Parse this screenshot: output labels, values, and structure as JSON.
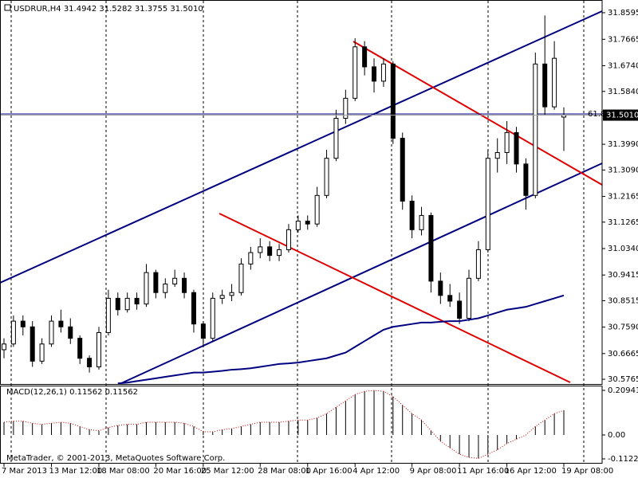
{
  "chart_data": [
    {
      "type": "candlestick",
      "title": "USDRUR,H4  31.4942 31.5282 31.3755 31.5010",
      "categories": [
        "7 Mar 2013",
        null,
        null,
        null,
        null,
        "13 Mar 12:00",
        null,
        null,
        null,
        null,
        "18 Mar 08:00",
        null,
        null,
        null,
        null,
        null,
        "20 Mar 16:00",
        null,
        null,
        null,
        null,
        "25 Mar 12:00",
        null,
        null,
        null,
        null,
        null,
        "28 Mar 08:00",
        null,
        null,
        null,
        null,
        "1 Apr 16:00",
        null,
        null,
        null,
        null,
        "4 Apr 12:00",
        null,
        null,
        null,
        null,
        null,
        "9 Apr 08:00",
        null,
        null,
        null,
        null,
        "11 Apr 16:00",
        null,
        null,
        null,
        null,
        "16 Apr 12:00",
        null,
        null,
        null,
        null,
        null,
        "19 Apr 08:00"
      ],
      "open": [
        30.68,
        30.7,
        30.78,
        30.76,
        30.64,
        30.7,
        30.78,
        30.76,
        30.72,
        30.65,
        30.62,
        30.74,
        30.86,
        30.82,
        30.86,
        30.84,
        30.95,
        30.88,
        30.91,
        30.93,
        30.88,
        30.77,
        30.72,
        30.86,
        30.87,
        30.88,
        30.98,
        31.02,
        31.04,
        31.01,
        31.03,
        31.1,
        31.13,
        31.12,
        31.22,
        31.35,
        31.49,
        31.56,
        31.74,
        31.67,
        31.62,
        31.68,
        31.42,
        31.2,
        31.1,
        31.15,
        30.92,
        30.87,
        30.85,
        30.79,
        30.93,
        31.03,
        31.35,
        31.37,
        31.44,
        31.33,
        31.22,
        31.68,
        31.53,
        31.4942
      ],
      "high": [
        30.72,
        30.8,
        30.8,
        30.78,
        30.72,
        30.8,
        30.82,
        30.79,
        30.73,
        30.66,
        30.76,
        30.89,
        30.88,
        30.88,
        30.88,
        30.98,
        30.96,
        30.93,
        30.96,
        30.95,
        30.89,
        30.78,
        30.88,
        30.89,
        30.91,
        31.0,
        31.04,
        31.07,
        31.06,
        31.05,
        31.12,
        31.15,
        31.15,
        31.25,
        31.38,
        31.52,
        31.59,
        31.77,
        31.76,
        31.7,
        31.7,
        31.69,
        31.44,
        31.22,
        31.18,
        31.16,
        30.95,
        30.91,
        30.88,
        30.96,
        31.06,
        31.38,
        31.42,
        31.48,
        31.46,
        31.35,
        31.72,
        31.85,
        31.76,
        31.5282
      ],
      "low": [
        30.65,
        30.69,
        30.73,
        30.62,
        30.63,
        30.69,
        30.74,
        30.7,
        30.63,
        30.6,
        30.61,
        30.73,
        30.8,
        30.81,
        30.82,
        30.83,
        30.86,
        30.86,
        30.9,
        30.86,
        30.74,
        30.69,
        30.71,
        30.84,
        30.85,
        30.87,
        30.96,
        31.0,
        30.99,
        30.99,
        31.02,
        31.09,
        31.1,
        31.11,
        31.21,
        31.34,
        31.47,
        31.55,
        31.64,
        31.58,
        31.6,
        31.4,
        31.17,
        31.07,
        31.08,
        30.88,
        30.84,
        30.83,
        30.77,
        30.78,
        30.92,
        31.02,
        31.3,
        31.33,
        31.3,
        31.17,
        31.21,
        31.5,
        31.52,
        31.3755
      ],
      "close": [
        30.7,
        30.78,
        30.76,
        30.64,
        30.7,
        30.78,
        30.76,
        30.72,
        30.65,
        30.62,
        30.74,
        30.86,
        30.82,
        30.86,
        30.84,
        30.95,
        30.88,
        30.91,
        30.93,
        30.88,
        30.77,
        30.72,
        30.86,
        30.87,
        30.88,
        30.98,
        31.02,
        31.04,
        31.01,
        31.03,
        31.1,
        31.13,
        31.12,
        31.22,
        31.35,
        31.49,
        31.56,
        31.74,
        31.67,
        31.62,
        31.68,
        31.42,
        31.2,
        31.1,
        31.15,
        30.92,
        30.87,
        30.85,
        30.79,
        30.93,
        31.03,
        31.35,
        31.37,
        31.44,
        31.33,
        31.22,
        31.68,
        31.53,
        31.7,
        31.501
      ],
      "ma": {
        "color": "#000080",
        "values": [
          null,
          null,
          null,
          null,
          null,
          null,
          null,
          null,
          null,
          null,
          null,
          null,
          30.562,
          30.565,
          30.57,
          30.575,
          30.58,
          30.585,
          30.59,
          30.595,
          30.6,
          30.6,
          30.603,
          30.606,
          30.61,
          30.612,
          30.615,
          30.62,
          30.625,
          30.63,
          30.632,
          30.635,
          30.64,
          30.645,
          30.65,
          30.66,
          30.67,
          30.69,
          30.71,
          30.73,
          30.75,
          30.76,
          30.765,
          30.77,
          30.775,
          30.775,
          30.778,
          30.78,
          30.78,
          30.785,
          30.79,
          30.8,
          30.81,
          30.82,
          30.825,
          30.83,
          30.84,
          30.85,
          30.86,
          30.87
        ]
      },
      "price_label": "31.5010",
      "fib_label": "61.8",
      "ylim": [
        30.56,
        31.904
      ],
      "yticks": [
        31.8595,
        31.7665,
        {
          "value": 31.674,
          "label": "31.6740"
        },
        {
          "value": 31.584,
          "label": "31.5840"
        },
        {
          "value": 31.399,
          "label": "31.3990"
        },
        {
          "value": 31.309,
          "label": "31.3090"
        },
        31.2165,
        31.1265,
        {
          "value": 31.034,
          "label": "31.0340"
        },
        30.9415,
        30.8515,
        {
          "value": 30.759,
          "label": "30.7590"
        },
        30.6665,
        30.5765
      ],
      "grid": true
    },
    {
      "type": "histogram",
      "title": "MACD(12,26,1) 0.11562 0.11562",
      "values": [
        0.06,
        0.065,
        0.065,
        0.055,
        0.05,
        0.055,
        0.06,
        0.055,
        0.04,
        0.025,
        0.02,
        0.035,
        0.045,
        0.05,
        0.05,
        0.06,
        0.06,
        0.06,
        0.06,
        0.055,
        0.04,
        0.015,
        0.015,
        0.025,
        0.03,
        0.04,
        0.05,
        0.06,
        0.06,
        0.06,
        0.065,
        0.07,
        0.07,
        0.08,
        0.1,
        0.13,
        0.16,
        0.19,
        0.205,
        0.209,
        0.205,
        0.18,
        0.14,
        0.1,
        0.07,
        0.02,
        -0.03,
        -0.06,
        -0.09,
        -0.105,
        -0.11,
        -0.09,
        -0.07,
        -0.04,
        -0.02,
        0.0,
        0.04,
        0.07,
        0.1,
        0.11562
      ],
      "color": "#000000",
      "signal_color": "#cc0000",
      "ylim": [
        -0.1346,
        0.2318
      ],
      "yticks": [
        0.20941,
        {
          "value": 0,
          "label": "0.00"
        },
        -0.11221
      ],
      "footer": "MetaTrader, © 2001-2013, MetaQuotes Software Corp."
    }
  ]
}
